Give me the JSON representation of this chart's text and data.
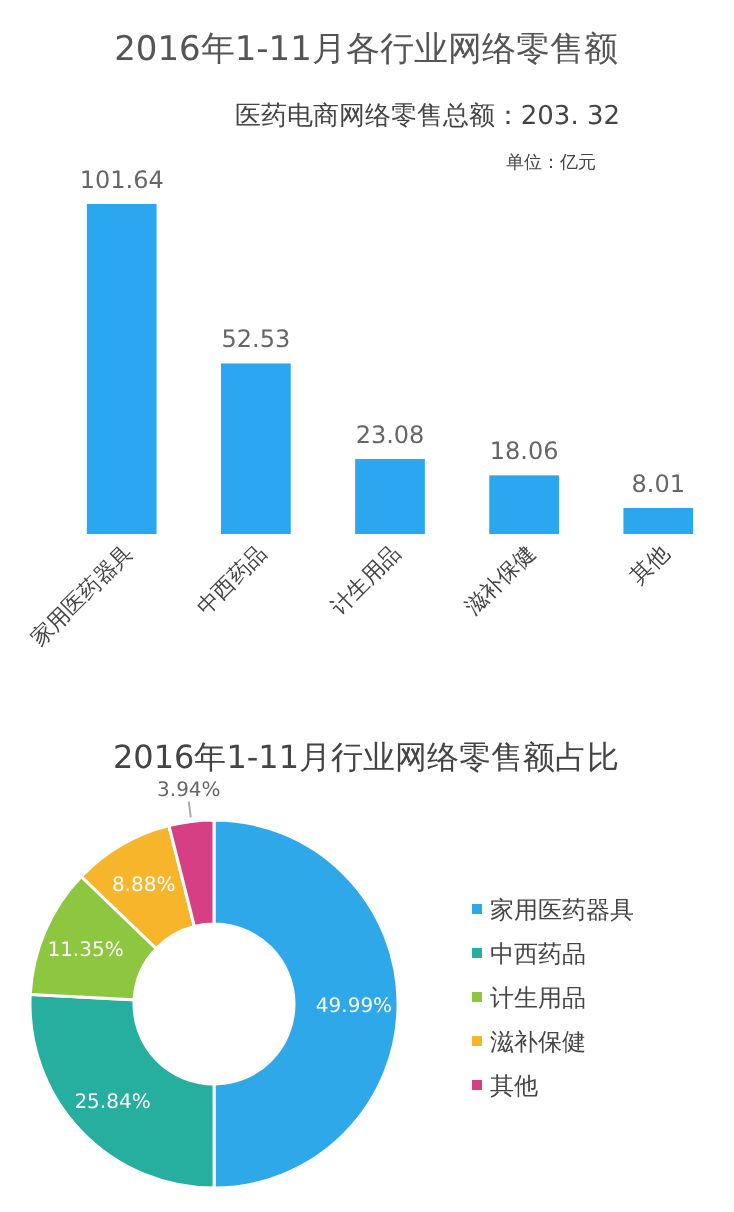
{
  "chart_data": [
    {
      "type": "bar",
      "title": "2016年1-11月各行业网络零售额",
      "annotations": [
        "医药电商网络零售总额：203. 32",
        "单位：亿元"
      ],
      "categories": [
        "家用医药器具",
        "中西药品",
        "计生用品",
        "滋补保健",
        "其他"
      ],
      "values": [
        101.64,
        52.53,
        23.08,
        18.06,
        8.01
      ],
      "color": "#2aa7ee",
      "data_labels": true
    },
    {
      "type": "donut",
      "title": "2016年1-11月行业网络零售额占比",
      "categories": [
        "家用医药器具",
        "中西药品",
        "计生用品",
        "滋补保健",
        "其他"
      ],
      "values": [
        49.99,
        25.84,
        11.35,
        8.88,
        3.94
      ],
      "colors": [
        "#2ea8e8",
        "#26ae9e",
        "#8dc63f",
        "#f7b52c",
        "#d63f84"
      ],
      "value_labels": [
        "49.99%",
        "25.84%",
        "11.35%",
        "8.88%",
        "3.94%"
      ],
      "legend": "right"
    }
  ]
}
